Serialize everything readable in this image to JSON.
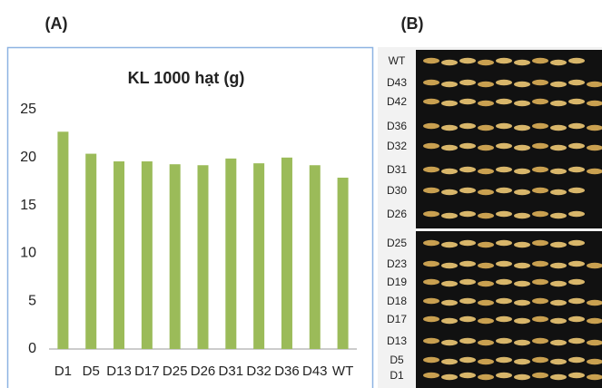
{
  "panels": {
    "a": "(A)",
    "b": "(B)"
  },
  "chart_data": {
    "type": "bar",
    "title": "KL 1000 hạt (g)",
    "categories": [
      "D1",
      "D5",
      "D13",
      "D17",
      "D25",
      "D26",
      "D31",
      "D32",
      "D36",
      "D43",
      "WT"
    ],
    "values": [
      22.7,
      20.4,
      19.6,
      19.6,
      19.3,
      19.2,
      19.9,
      19.4,
      20.0,
      19.2,
      17.9
    ],
    "color": "#9bbb59",
    "ylim": [
      0,
      25
    ],
    "yticks": [
      0,
      5,
      10,
      15,
      20,
      25
    ],
    "grid": false
  },
  "photo": {
    "labels": [
      "WT",
      "D43",
      "D42",
      "D36",
      "D32",
      "D31",
      "D30",
      "D26",
      "D25",
      "D23",
      "D19",
      "D18",
      "D17",
      "D13",
      "D5",
      "D1"
    ]
  }
}
